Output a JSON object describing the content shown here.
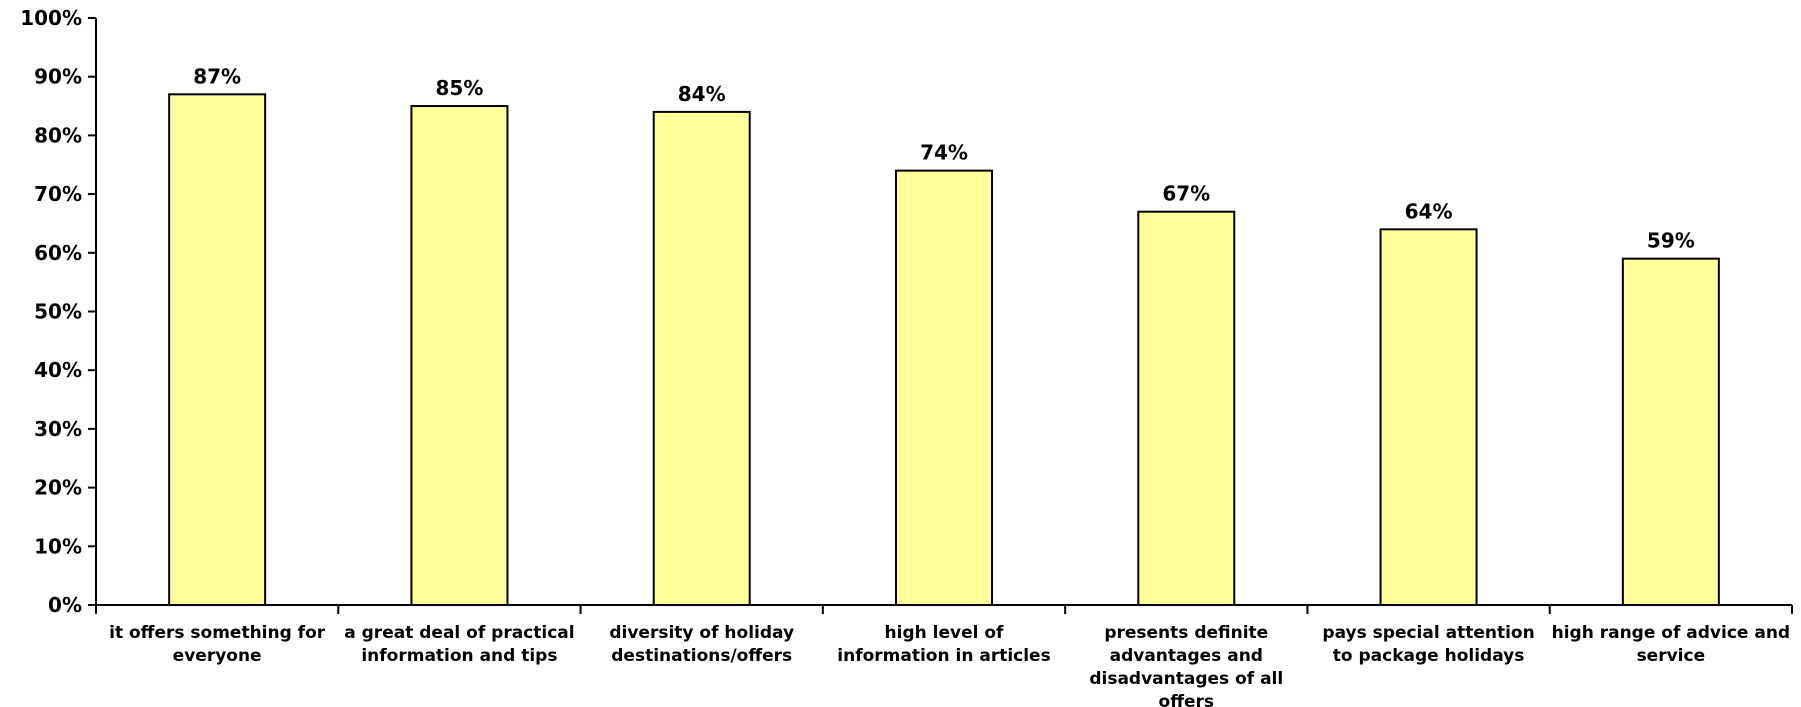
{
  "chart_data": {
    "type": "bar",
    "categories": [
      [
        "it offers something for",
        "everyone"
      ],
      [
        "a great deal of practical",
        "information and tips"
      ],
      [
        "diversity of holiday",
        "destinations/offers"
      ],
      [
        "high level of",
        "information in articles"
      ],
      [
        "presents definite",
        "advantages and",
        "disadvantages of all",
        "offers"
      ],
      [
        "pays special attention",
        "to package holidays"
      ],
      [
        "high range of advice and",
        "service"
      ]
    ],
    "values": [
      87,
      85,
      84,
      74,
      67,
      64,
      59
    ],
    "value_labels": [
      "87%",
      "85%",
      "84%",
      "74%",
      "67%",
      "64%",
      "59%"
    ],
    "ylim": [
      0,
      100
    ],
    "yticks": [
      0,
      10,
      20,
      30,
      40,
      50,
      60,
      70,
      80,
      90,
      100
    ],
    "ytick_labels": [
      "0%",
      "10%",
      "20%",
      "30%",
      "40%",
      "50%",
      "60%",
      "70%",
      "80%",
      "90%",
      "100%"
    ],
    "title": "",
    "xlabel": "",
    "ylabel": "",
    "grid": false,
    "legend": "none",
    "colors": {
      "bar_fill": "#FFFF99",
      "bar_stroke": "#000000"
    }
  }
}
